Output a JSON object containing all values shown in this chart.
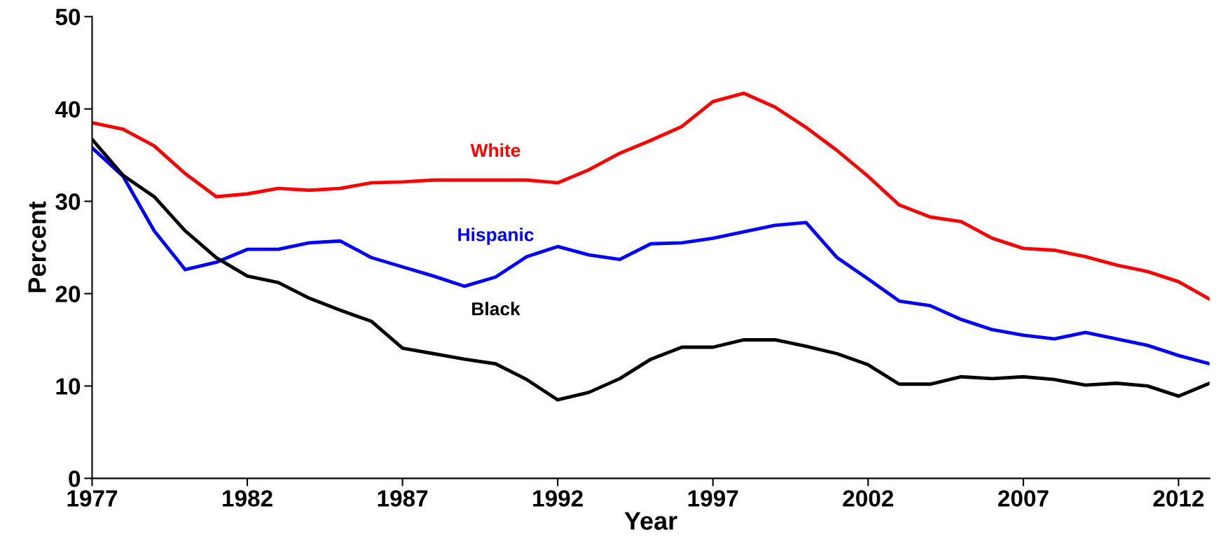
{
  "chart_data": {
    "type": "line",
    "xlabel": "Year",
    "ylabel": "Percent",
    "x": [
      1977,
      1978,
      1979,
      1980,
      1981,
      1982,
      1983,
      1984,
      1985,
      1986,
      1987,
      1988,
      1989,
      1990,
      1991,
      1992,
      1993,
      1994,
      1995,
      1996,
      1997,
      1998,
      1999,
      2000,
      2001,
      2002,
      2003,
      2004,
      2005,
      2006,
      2007,
      2008,
      2009,
      2010,
      2011,
      2012,
      2013
    ],
    "series": [
      {
        "name": "White",
        "color": "#ff0000",
        "values": [
          38.5,
          37.8,
          36.0,
          33.0,
          30.5,
          30.8,
          31.4,
          31.2,
          31.4,
          32.0,
          32.1,
          32.3,
          32.3,
          32.3,
          32.3,
          32.0,
          33.4,
          35.2,
          36.6,
          38.1,
          40.8,
          41.7,
          40.2,
          38.0,
          35.5,
          32.7,
          29.6,
          28.3,
          27.8,
          26.0,
          24.9,
          24.7,
          24.0,
          23.1,
          22.4,
          21.3,
          19.4
        ]
      },
      {
        "name": "Hispanic",
        "color": "#0000ff",
        "values": [
          35.8,
          32.7,
          26.8,
          22.6,
          23.4,
          24.8,
          24.8,
          25.5,
          25.7,
          23.9,
          22.9,
          21.9,
          20.8,
          21.8,
          24.0,
          25.1,
          24.2,
          23.7,
          25.4,
          25.5,
          26.0,
          26.7,
          27.4,
          27.7,
          23.9,
          21.6,
          19.2,
          18.7,
          17.2,
          16.1,
          15.5,
          15.1,
          15.8,
          15.1,
          14.4,
          13.3,
          12.4
        ]
      },
      {
        "name": "Black",
        "color": "#000000",
        "values": [
          36.7,
          32.8,
          30.5,
          26.8,
          23.9,
          21.9,
          21.2,
          19.5,
          18.2,
          17.0,
          14.1,
          13.5,
          12.9,
          12.4,
          10.7,
          8.5,
          9.3,
          10.8,
          12.9,
          14.2,
          14.2,
          15.0,
          15.0,
          14.3,
          13.5,
          12.3,
          10.2,
          10.2,
          11.0,
          10.8,
          11.0,
          10.7,
          10.1,
          10.3,
          10.0,
          8.9,
          10.3
        ]
      }
    ],
    "xlim": [
      1977,
      2013
    ],
    "xticks": [
      1977,
      1982,
      1987,
      1992,
      1997,
      2002,
      2007,
      2012
    ],
    "ylim": [
      0,
      50
    ],
    "yticks": [
      0,
      10,
      20,
      30,
      40,
      50
    ],
    "grid": false,
    "legend": false,
    "marker": "none",
    "line_style": "solid"
  }
}
